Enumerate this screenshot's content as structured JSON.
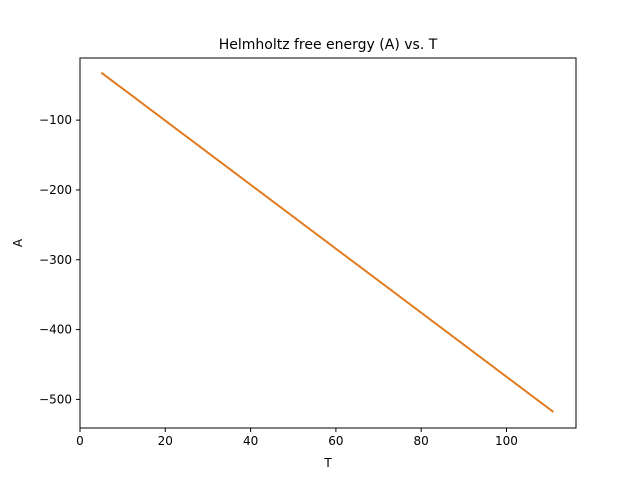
{
  "chart_data": {
    "type": "line",
    "title": "Helmholtz free energy (A) vs. T",
    "xlabel": "T",
    "ylabel": "A",
    "xlim": [
      0,
      116.3
    ],
    "ylim": [
      -541,
      -11
    ],
    "xticks": [
      0,
      20,
      40,
      60,
      80,
      100
    ],
    "yticks": [
      -100,
      -200,
      -300,
      -400,
      -500
    ],
    "grid": false,
    "series": [
      {
        "color": "#e07b20",
        "x": [
          5,
          111
        ],
        "y": [
          -32,
          -518
        ]
      }
    ]
  }
}
